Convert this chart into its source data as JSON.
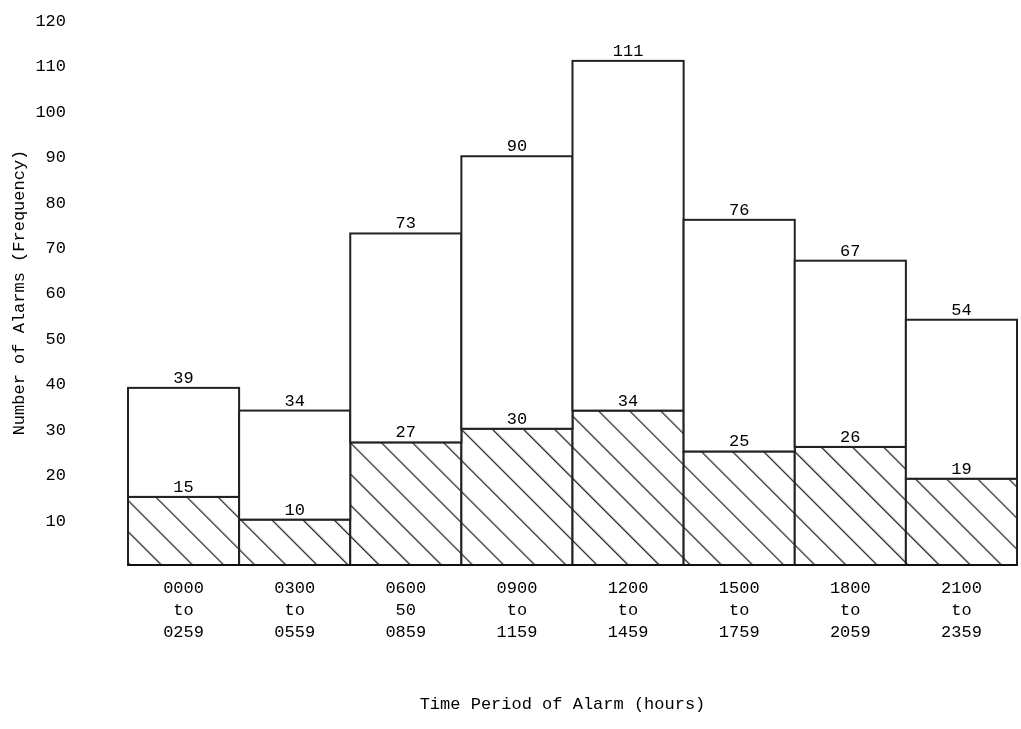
{
  "chart_data": {
    "type": "bar",
    "stacked": true,
    "xlabel": "Time Period of Alarm (hours)",
    "ylabel": "Number of Alarms (Frequency)",
    "categories": [
      "0000\nto\n0259",
      "0300\nto\n0559",
      "0600\n50\n0859",
      "0900\nto\n1159",
      "1200\nto\n1459",
      "1500\nto\n1759",
      "1800\nto\n2059",
      "2100\nto\n2359"
    ],
    "series": [
      {
        "color": "#222222",
        "values": [
          15,
          10,
          27,
          30,
          34,
          25,
          26,
          19
        ],
        "value_labels": [
          "15",
          "10",
          "27",
          "30",
          "34",
          "25",
          "26",
          "19"
        ]
      },
      {
        "color": "#ffffff",
        "values": [
          24,
          24,
          46,
          60,
          77,
          51,
          41,
          35
        ]
      }
    ],
    "totals": [
      "39",
      "34",
      "73",
      "90",
      "111",
      "76",
      "67",
      "54"
    ],
    "ylim": [
      0,
      120
    ],
    "yticks": [
      10,
      20,
      30,
      40,
      50,
      60,
      70,
      80,
      90,
      100,
      110,
      120
    ],
    "grid": false
  }
}
